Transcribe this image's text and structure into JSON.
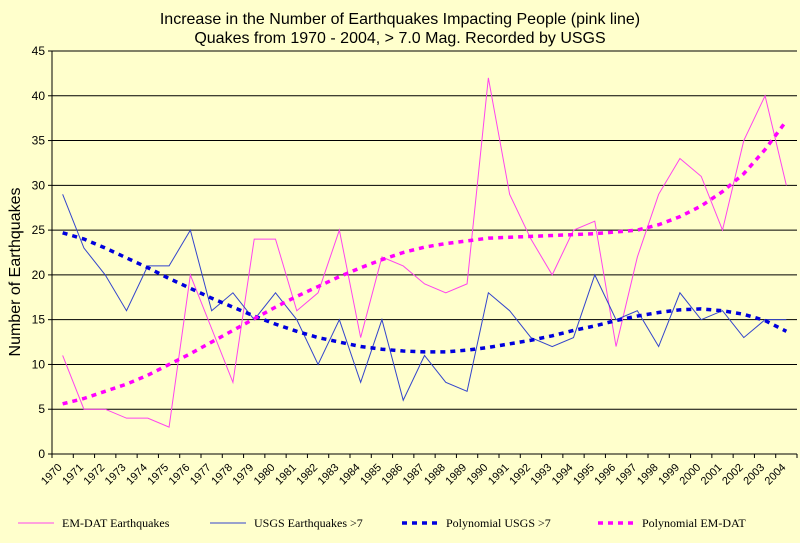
{
  "chart_data": {
    "type": "line",
    "title": "Increase in the Number of Earthquakes Impacting People (pink line)",
    "subtitle": "Quakes from 1970 - 2004, > 7.0 Mag. Recorded by USGS",
    "ylabel": "Number of Earthquakes",
    "xlabel": "",
    "ylim": [
      0,
      45
    ],
    "yticks": [
      0,
      5,
      10,
      15,
      20,
      25,
      30,
      35,
      40,
      45
    ],
    "grid": "horizontal",
    "legend_position": "bottom",
    "categories": [
      "1970",
      "1971",
      "1972",
      "1973",
      "1974",
      "1975",
      "1976",
      "1977",
      "1978",
      "1979",
      "1980",
      "1981",
      "1982",
      "1983",
      "1984",
      "1985",
      "1986",
      "1987",
      "1988",
      "1989",
      "1990",
      "1991",
      "1992",
      "1993",
      "1994",
      "1995",
      "1996",
      "1997",
      "1998",
      "1999",
      "2000",
      "2001",
      "2002",
      "2003",
      "2004"
    ],
    "series": [
      {
        "name": "EM-DAT Earthquakes",
        "style": "solid",
        "color": "#ff44ee",
        "values": [
          11,
          5,
          5,
          4,
          4,
          3,
          20,
          14,
          8,
          24,
          24,
          16,
          18,
          25,
          13,
          22,
          21,
          19,
          18,
          19,
          42,
          29,
          24,
          20,
          25,
          26,
          12,
          22,
          29,
          33,
          31,
          25,
          35,
          40,
          30
        ]
      },
      {
        "name": "USGS Earthquakes >7",
        "style": "solid",
        "color": "#3344cc",
        "values": [
          29,
          23,
          20,
          16,
          21,
          21,
          25,
          16,
          18,
          15,
          18,
          15,
          10,
          15,
          8,
          15,
          6,
          11,
          8,
          7,
          18,
          16,
          13,
          12,
          13,
          20,
          15,
          16,
          12,
          18,
          15,
          16,
          13,
          15,
          15
        ]
      },
      {
        "name": "Polynomial USGS >7",
        "style": "dotted",
        "color": "#0000dd",
        "values": [
          24.7,
          24.0,
          23.0,
          21.9,
          20.8,
          19.6,
          18.5,
          17.4,
          16.4,
          15.4,
          14.5,
          13.7,
          13.0,
          12.5,
          12.0,
          11.7,
          11.5,
          11.4,
          11.4,
          11.6,
          11.9,
          12.3,
          12.7,
          13.2,
          13.8,
          14.3,
          14.9,
          15.4,
          15.8,
          16.1,
          16.2,
          16.0,
          15.6,
          14.9,
          13.7
        ]
      },
      {
        "name": "Polynomial EM-DAT",
        "style": "dotted",
        "color": "#ff00ff",
        "values": [
          5.6,
          6.2,
          7.0,
          7.8,
          8.8,
          10.0,
          11.2,
          12.5,
          13.8,
          15.1,
          16.4,
          17.6,
          18.7,
          19.8,
          20.8,
          21.7,
          22.5,
          23.1,
          23.5,
          23.8,
          24.1,
          24.2,
          24.3,
          24.4,
          24.5,
          24.6,
          24.8,
          25.0,
          25.6,
          26.5,
          27.7,
          29.3,
          31.3,
          34.0,
          37.2
        ]
      }
    ]
  }
}
